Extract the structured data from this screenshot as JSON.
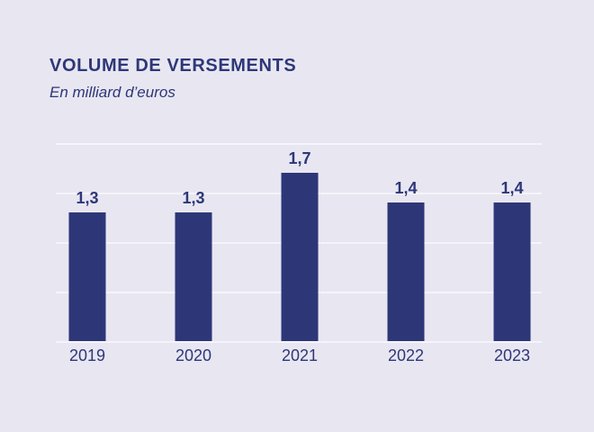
{
  "page": {
    "background_color": "#e8e6f1",
    "accent_color": "#2d3778"
  },
  "header": {
    "title": "VOLUME DE VERSEMENTS",
    "subtitle": "En milliard d’euros"
  },
  "chart_data": {
    "type": "bar",
    "title": "VOLUME DE VERSEMENTS",
    "subtitle": "En milliard d’euros",
    "xlabel": "",
    "ylabel": "En milliard d’euros",
    "categories": [
      "2019",
      "2020",
      "2021",
      "2022",
      "2023"
    ],
    "values": [
      1.3,
      1.3,
      1.7,
      1.4,
      1.4
    ],
    "value_labels": [
      "1,3",
      "1,3",
      "1,7",
      "1,4",
      "1,4"
    ],
    "ylim": [
      0,
      2.0
    ],
    "gridline_values": [
      0,
      0.5,
      1.0,
      1.5,
      2.0
    ],
    "grid": "on",
    "legend": "none",
    "bar_color": "#2d3778",
    "label_color": "#2d3778",
    "gridline_color": "rgba(255,255,255,0.55)"
  }
}
